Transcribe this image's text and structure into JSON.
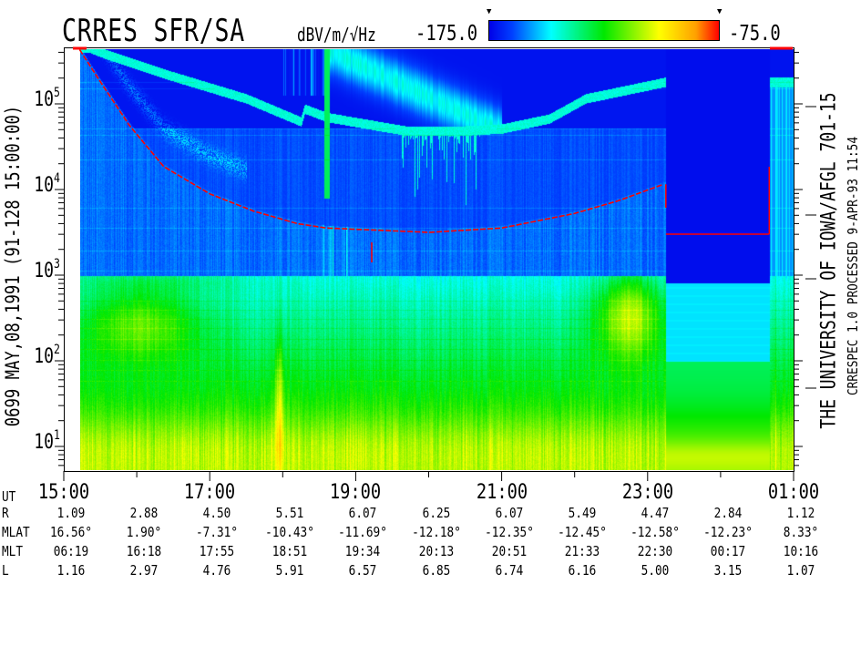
{
  "header": {
    "title": "CRRES SFR/SA",
    "units": "dBV/m/√Hz",
    "colorbar_min": "-175.0",
    "colorbar_max": "-75.0",
    "colorbar_marker_left": "▼",
    "colorbar_marker_right": "▼"
  },
  "left_caption": "0699  MAY,08,1991  (91-128 15:00:00)",
  "right_caption": "THE UNIVERSITY OF IOWA/AFGL 701-15",
  "right_subcaption": "CRRESPEC 1.0  PROCESSED  9-APR-93  11:54",
  "chart_data": {
    "type": "heatmap",
    "title": "CRRES SFR/SA",
    "colorbar": {
      "label": "dBV/m/√Hz",
      "range": [
        -175.0,
        -75.0
      ],
      "colors": [
        "#0000e8",
        "#0040ff",
        "#00ffff",
        "#00e800",
        "#ffff00",
        "#ffa000",
        "#ff0000"
      ]
    },
    "x_axis": {
      "unit": "UT",
      "range": [
        "15:00",
        "01:00"
      ],
      "tick_labels": [
        "15:00",
        "17:00",
        "19:00",
        "21:00",
        "23:00",
        "01:00"
      ],
      "minor_ticks_every_hours": 1
    },
    "y_axis": {
      "scale": "log",
      "unit": "Hz",
      "range": [
        5.4,
        430000
      ],
      "tick_labels": [
        {
          "base": "10",
          "exp": "1"
        },
        {
          "base": "10",
          "exp": "2"
        },
        {
          "base": "10",
          "exp": "3"
        },
        {
          "base": "10",
          "exp": "4"
        },
        {
          "base": "10",
          "exp": "5"
        }
      ]
    },
    "data_gap": {
      "from": "23:15",
      "to": "00:40"
    },
    "red_curve": {
      "color": "#ff0000",
      "points": [
        [
          "15:13",
          430000
        ],
        [
          "15:30",
          182000
        ],
        [
          "15:54",
          56000
        ],
        [
          "16:22",
          18600
        ],
        [
          "17:00",
          8900
        ],
        [
          "17:36",
          5600
        ],
        [
          "18:12",
          4000
        ],
        [
          "18:36",
          3550
        ],
        [
          "20:00",
          3160
        ],
        [
          "21:00",
          3550
        ],
        [
          "22:00",
          5250
        ],
        [
          "22:36",
          7400
        ],
        [
          "23:13",
          11500
        ]
      ]
    },
    "upper_emission_line": {
      "points": [
        [
          "15:21",
          457000
        ],
        [
          "15:32",
          398000
        ],
        [
          "16:22",
          229000
        ],
        [
          "17:30",
          117000
        ],
        [
          "18:15",
          63000
        ],
        [
          "18:18",
          89000
        ],
        [
          "18:36",
          71000
        ],
        [
          "19:42",
          49000
        ],
        [
          "20:24",
          49000
        ],
        [
          "21:00",
          52000
        ],
        [
          "21:39",
          68000
        ],
        [
          "22:09",
          117000
        ],
        [
          "23:14",
          182000
        ]
      ]
    },
    "grid": false
  },
  "ephemeris": {
    "rows": [
      {
        "label": "UT",
        "values": [
          "15:00",
          "17:00",
          "19:00",
          "21:00",
          "23:00",
          "01:00"
        ]
      },
      {
        "label": "R",
        "values": [
          "1.09",
          "2.88",
          "4.50",
          "5.51",
          "6.07",
          "6.25",
          "6.07",
          "5.49",
          "4.47",
          "2.84",
          "1.12"
        ]
      },
      {
        "label": "MLAT",
        "values": [
          "16.56°",
          "1.90°",
          "-7.31°",
          "-10.43°",
          "-11.69°",
          "-12.18°",
          "-12.35°",
          "-12.45°",
          "-12.58°",
          "-12.23°",
          "8.33°"
        ]
      },
      {
        "label": "MLT",
        "values": [
          "06:19",
          "16:18",
          "17:55",
          "18:51",
          "19:34",
          "20:13",
          "20:51",
          "21:33",
          "22:30",
          "00:17",
          "10:16"
        ]
      },
      {
        "label": "L",
        "values": [
          "1.16",
          "2.97",
          "4.76",
          "5.91",
          "6.57",
          "6.85",
          "6.74",
          "6.16",
          "5.00",
          "3.15",
          "1.07"
        ]
      }
    ]
  }
}
